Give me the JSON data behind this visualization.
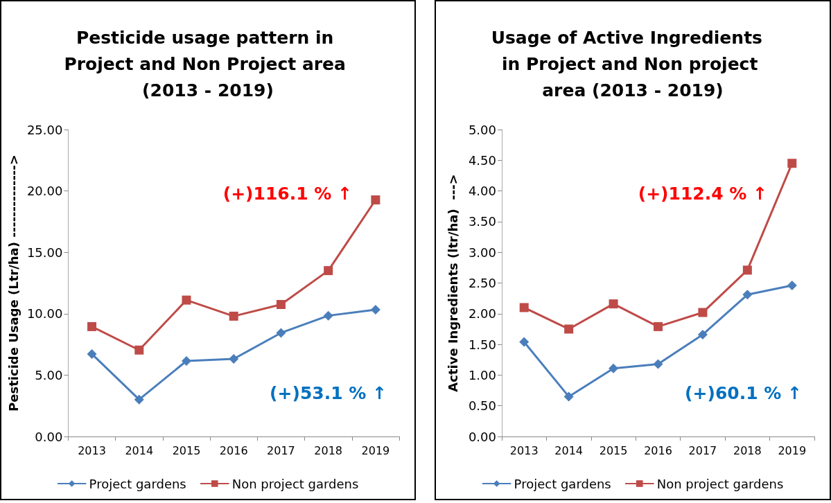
{
  "chart_data": [
    {
      "type": "line",
      "title": "Pesticide usage pattern in Project and Non Project area (2013 - 2019)",
      "ylabel": "Pesticide Usage (Ltr/ha) -------------->",
      "categories": [
        "2013",
        "2014",
        "2015",
        "2016",
        "2017",
        "2018",
        "2019"
      ],
      "series": [
        {
          "name": "Project gardens",
          "color": "#4a7ebb",
          "marker": "diamond",
          "values": [
            6.72,
            3.01,
            6.15,
            6.32,
            8.44,
            9.84,
            10.33
          ]
        },
        {
          "name": "Non project gardens",
          "color": "#be4b48",
          "marker": "square",
          "values": [
            8.95,
            7.04,
            11.11,
            9.8,
            10.75,
            13.51,
            19.27
          ]
        }
      ],
      "ylim": [
        0,
        25
      ],
      "yticks": [
        {
          "value": 0,
          "label": "0.00"
        },
        {
          "value": 5,
          "label": "5.00"
        },
        {
          "value": 10,
          "label": "10.00"
        },
        {
          "value": 15,
          "label": "15.00"
        },
        {
          "value": 20,
          "label": "20.00"
        },
        {
          "value": 25,
          "label": "25.00"
        }
      ],
      "grid": false,
      "legend": "bottom",
      "annotations": [
        "(+)116.1 % ↑",
        "(+)53.1 % ↑"
      ]
    },
    {
      "type": "line",
      "title": "Usage of Active Ingredients  in Project and Non project area (2013 - 2019)",
      "ylabel": "Active Ingredients (ltr/ha)  --->",
      "categories": [
        "2013",
        "2014",
        "2015",
        "2016",
        "2017",
        "2018",
        "2019"
      ],
      "series": [
        {
          "name": "Project gardens",
          "color": "#4a7ebb",
          "marker": "diamond",
          "values": [
            1.54,
            0.65,
            1.11,
            1.18,
            1.66,
            2.31,
            2.46
          ]
        },
        {
          "name": "Non project gardens",
          "color": "#be4b48",
          "marker": "square",
          "values": [
            2.1,
            1.75,
            2.16,
            1.79,
            2.02,
            2.71,
            4.45
          ]
        }
      ],
      "ylim": [
        0,
        5
      ],
      "yticks": [
        {
          "value": 0,
          "label": "0.00"
        },
        {
          "value": 0.5,
          "label": "0.50"
        },
        {
          "value": 1,
          "label": "1.00"
        },
        {
          "value": 1.5,
          "label": "1.50"
        },
        {
          "value": 2,
          "label": "2.00"
        },
        {
          "value": 2.5,
          "label": "2.50"
        },
        {
          "value": 3,
          "label": "3.00"
        },
        {
          "value": 3.5,
          "label": "3.50"
        },
        {
          "value": 4,
          "label": "4.00"
        },
        {
          "value": 4.5,
          "label": "4.50"
        },
        {
          "value": 5,
          "label": "5.00"
        }
      ],
      "grid": false,
      "legend": "bottom",
      "annotations": [
        "(+)112.4 % ↑",
        "(+)60.1 % ↑"
      ]
    }
  ]
}
